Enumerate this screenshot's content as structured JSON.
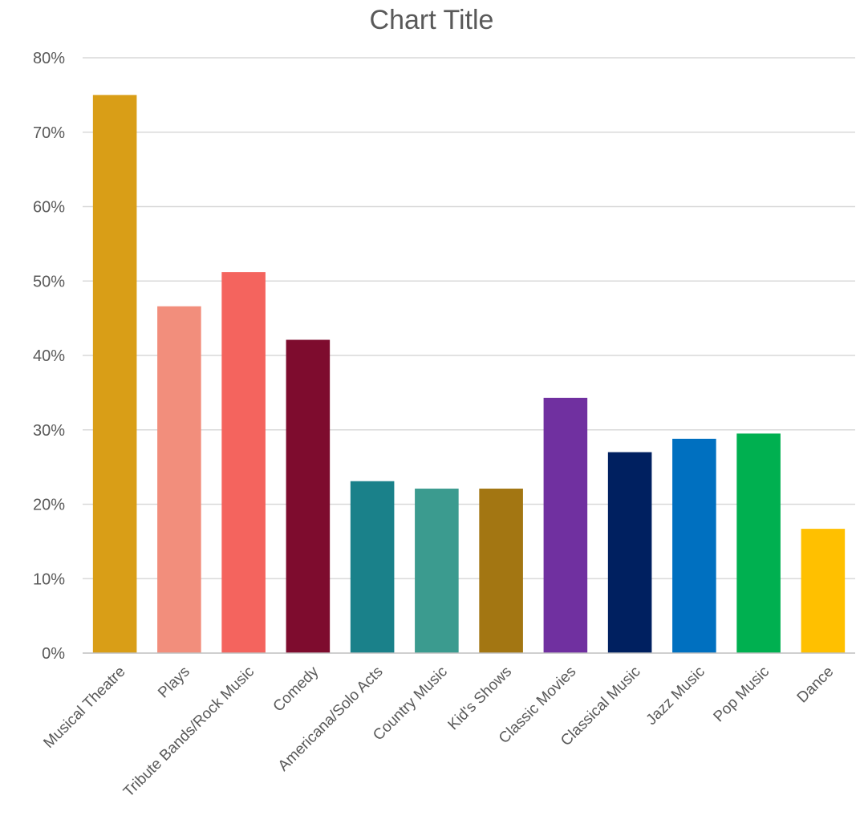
{
  "chart_data": {
    "type": "bar",
    "title": "Chart Title",
    "xlabel": "",
    "ylabel": "",
    "ylim": [
      0,
      80
    ],
    "y_ticks": [
      0,
      10,
      20,
      30,
      40,
      50,
      60,
      70,
      80
    ],
    "y_tick_format": "percent",
    "y_tick_labels": [
      "0%",
      "10%",
      "20%",
      "30%",
      "40%",
      "50%",
      "60%",
      "70%",
      "80%"
    ],
    "grid": true,
    "legend": "none",
    "categories": [
      "Musical Theatre",
      "Plays",
      "Tribute Bands/Rock Music",
      "Comedy",
      "Americana/Solo Acts",
      "Country Music",
      "Kid's Shows",
      "Classic Movies",
      "Classical Music",
      "Jazz Music",
      "Pop Music",
      "Dance"
    ],
    "values": [
      75,
      46.6,
      51.2,
      42.1,
      23.1,
      22.1,
      22.1,
      34.3,
      27,
      28.8,
      29.5,
      16.7
    ],
    "colors": [
      "#D99E17",
      "#F28E7C",
      "#F4645E",
      "#7E0C2E",
      "#1A818A",
      "#3B9B8F",
      "#A37612",
      "#7030A0",
      "#002060",
      "#0070C0",
      "#00B050",
      "#FFC000"
    ]
  }
}
